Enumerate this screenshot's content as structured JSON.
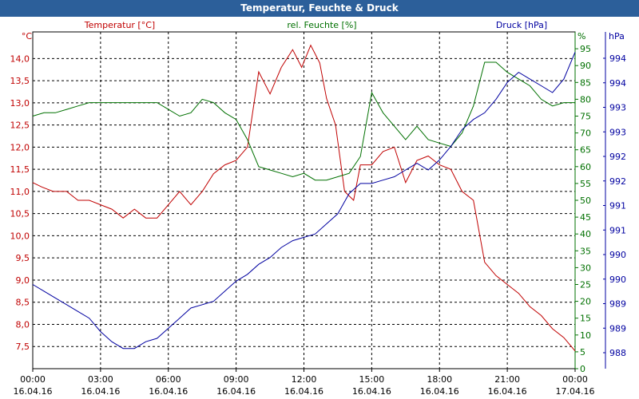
{
  "window": {
    "title": "Temperatur, Feuchte & Druck"
  },
  "colors": {
    "temperature": "#c00000",
    "humidity": "#007000",
    "pressure": "#0000a0",
    "grid": "#000000",
    "titlebar": "#2c5f9a"
  },
  "chart_data": {
    "type": "line",
    "title": "Temperatur, Feuchte & Druck",
    "grid": true,
    "x_ticks": [
      {
        "time": "00:00",
        "date": "16.04.16"
      },
      {
        "time": "03:00",
        "date": "16.04.16"
      },
      {
        "time": "06:00",
        "date": "16.04.16"
      },
      {
        "time": "09:00",
        "date": "16.04.16"
      },
      {
        "time": "12:00",
        "date": "16.04.16"
      },
      {
        "time": "15:00",
        "date": "16.04.16"
      },
      {
        "time": "18:00",
        "date": "16.04.16"
      },
      {
        "time": "21:00",
        "date": "16.04.16"
      },
      {
        "time": "00:00",
        "date": "17.04.16"
      }
    ],
    "x_range_hours": [
      0,
      24
    ],
    "axes": {
      "left": {
        "label": "Temperatur [°C]",
        "unit": "°C",
        "range": [
          7.0,
          14.6
        ],
        "ticks": [
          "7,5",
          "8,0",
          "8,5",
          "9,0",
          "9,5",
          "10,0",
          "10,5",
          "11,0",
          "11,5",
          "12,0",
          "12,5",
          "13,0",
          "13,5",
          "14,0"
        ]
      },
      "middle": {
        "label": "rel. Feuchte [%]",
        "unit": "%",
        "range": [
          0,
          100
        ],
        "ticks": [
          "0",
          "5",
          "10",
          "15",
          "20",
          "25",
          "30",
          "35",
          "40",
          "45",
          "50",
          "55",
          "60",
          "65",
          "70",
          "75",
          "80",
          "85",
          "90",
          "95"
        ]
      },
      "right": {
        "label": "Druck [hPa]",
        "unit": "hPa",
        "ticks": [
          "988",
          "989",
          "989",
          "990",
          "990",
          "991",
          "991",
          "992",
          "992",
          "993",
          "993",
          "994",
          "994"
        ]
      }
    },
    "series": [
      {
        "name": "Temperatur [°C]",
        "axis": "left",
        "color": "#c00000",
        "x": [
          0,
          0.4,
          0.9,
          1.5,
          2,
          2.5,
          3,
          3.5,
          4,
          4.5,
          5,
          5.5,
          6,
          6.5,
          7,
          7.5,
          8,
          8.5,
          9,
          9.5,
          10,
          10.5,
          11,
          11.5,
          11.9,
          12.3,
          12.7,
          13,
          13.4,
          13.8,
          14.2,
          14.5,
          15,
          15.5,
          16,
          16.5,
          17,
          17.5,
          18,
          18.5,
          19,
          19.5,
          20,
          20.5,
          21,
          21.5,
          22,
          22.5,
          23,
          23.5,
          24
        ],
        "y": [
          11.2,
          11.1,
          11.0,
          11.0,
          10.8,
          10.8,
          10.7,
          10.6,
          10.4,
          10.6,
          10.4,
          10.4,
          10.7,
          11.0,
          10.7,
          11.0,
          11.4,
          11.6,
          11.7,
          12.0,
          13.7,
          13.2,
          13.8,
          14.2,
          13.8,
          14.3,
          13.9,
          13.1,
          12.5,
          11.0,
          10.8,
          11.6,
          11.6,
          11.9,
          12.0,
          11.2,
          11.7,
          11.8,
          11.6,
          11.5,
          11.0,
          10.8,
          9.4,
          9.1,
          8.9,
          8.7,
          8.4,
          8.2,
          7.9,
          7.7,
          7.4
        ]
      },
      {
        "name": "rel. Feuchte [%]",
        "axis": "middle",
        "color": "#007000",
        "x": [
          0,
          0.5,
          1,
          1.5,
          2,
          2.5,
          3,
          3.5,
          4,
          4.5,
          5,
          5.5,
          6,
          6.5,
          7,
          7.5,
          8,
          8.5,
          9,
          9.5,
          10,
          10.5,
          11,
          11.5,
          12,
          12.5,
          13,
          13.5,
          14,
          14.5,
          15,
          15.5,
          16,
          16.5,
          17,
          17.5,
          18,
          18.5,
          19,
          19.5,
          20,
          20.5,
          21,
          21.5,
          22,
          22.5,
          23,
          23.5,
          24
        ],
        "y": [
          75,
          76,
          76,
          77,
          78,
          79,
          79,
          79,
          79,
          79,
          79,
          79,
          77,
          75,
          76,
          80,
          79,
          76,
          74,
          68,
          60,
          59,
          58,
          57,
          58,
          56,
          56,
          57,
          58,
          63,
          82,
          76,
          72,
          68,
          72,
          68,
          67,
          66,
          70,
          78,
          91,
          91,
          88,
          86,
          84,
          80,
          78,
          79,
          79
        ]
      },
      {
        "name": "Druck [hPa]",
        "axis": "right",
        "color": "#0000a0",
        "x": [
          0,
          0.5,
          1,
          1.5,
          2,
          2.5,
          3,
          3.5,
          4,
          4.5,
          5,
          5.5,
          6,
          6.5,
          7,
          7.5,
          8,
          8.5,
          9,
          9.5,
          10,
          10.5,
          11,
          11.5,
          12,
          12.5,
          13,
          13.5,
          14,
          14.5,
          15,
          15.5,
          16,
          16.5,
          17,
          17.5,
          18,
          18.5,
          19,
          19.5,
          20,
          20.5,
          21,
          21.5,
          22,
          22.5,
          23,
          23.5,
          24
        ],
        "y": [
          25,
          23,
          21,
          19,
          17,
          15,
          11,
          8,
          6,
          6,
          8,
          9,
          12,
          15,
          18,
          19,
          20,
          23,
          26,
          28,
          31,
          33,
          36,
          38,
          39,
          40,
          43,
          46,
          52,
          55,
          55,
          56,
          57,
          59,
          61,
          59,
          62,
          66,
          71,
          74,
          76,
          80,
          85,
          88,
          86,
          84,
          82,
          86,
          94
        ]
      }
    ]
  }
}
